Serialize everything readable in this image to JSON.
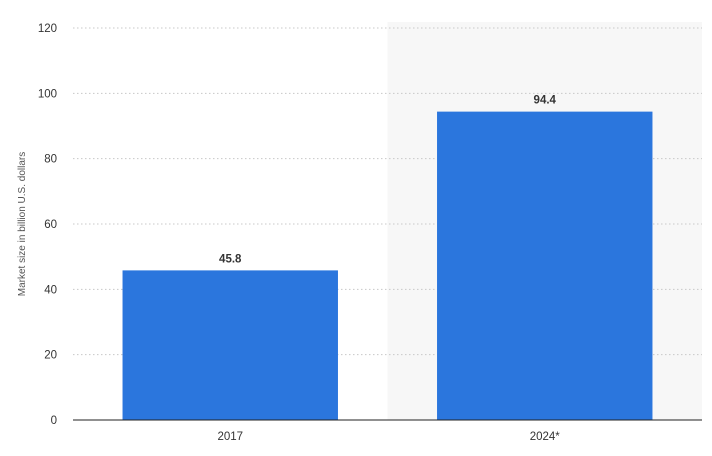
{
  "chart_data": {
    "type": "bar",
    "categories": [
      "2017",
      "2024*"
    ],
    "values": [
      45.8,
      94.4
    ],
    "data_labels": [
      "45.8",
      "94.4"
    ],
    "highlighted_category": "2024*",
    "ylabel": "Market size in billion U.S. dollars",
    "ylim": [
      0,
      120
    ],
    "yticks": [
      0,
      20,
      40,
      60,
      80,
      100,
      120
    ],
    "ytick_labels": [
      "0",
      "20",
      "40",
      "60",
      "80",
      "100",
      "120"
    ],
    "grid": true,
    "bar_color": "#2b76dd",
    "highlight_background": "#f7f7f7"
  }
}
